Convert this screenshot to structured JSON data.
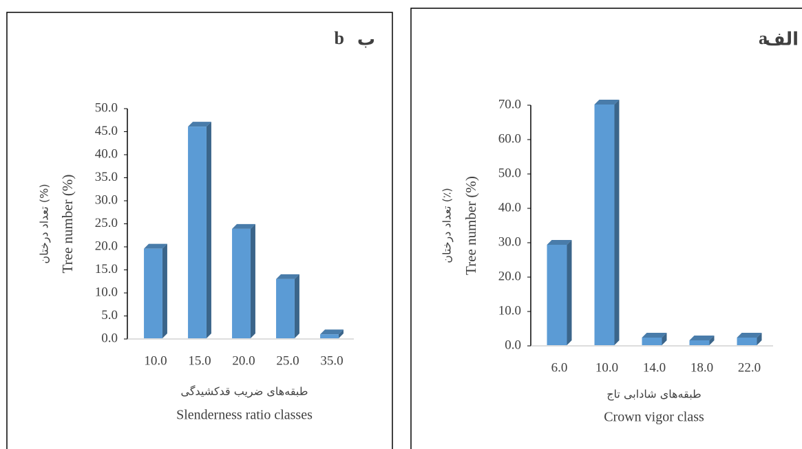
{
  "chart_data": [
    {
      "type": "bar3d",
      "panel_letter": "b",
      "panel_letter_fa": "ب",
      "y_label": "Tree number (%)",
      "y_label_fa": "تعداد درختان (%)",
      "x_label": "Slenderness ratio classes",
      "x_label_fa": "طبقه‌های ضریب قدکشیدگی",
      "categories": [
        "10.0",
        "15.0",
        "20.0",
        "25.0",
        "35.0"
      ],
      "values": [
        19.6,
        46.1,
        23.9,
        13.0,
        1.0
      ],
      "color": "#5b9bd5",
      "ylim": [
        0,
        50
      ],
      "yticks": [
        {
          "value": 0,
          "label": "0.0"
        },
        {
          "value": 5,
          "label": "5.0"
        },
        {
          "value": 10,
          "label": "10.0"
        },
        {
          "value": 15,
          "label": "15.0"
        },
        {
          "value": 20,
          "label": "20.0"
        },
        {
          "value": 25,
          "label": "25.0"
        },
        {
          "value": 30,
          "label": "30.0"
        },
        {
          "value": 35,
          "label": "35.0"
        },
        {
          "value": 40,
          "label": "40.0"
        },
        {
          "value": 45,
          "label": "45.0"
        },
        {
          "value": 50,
          "label": "50.0"
        }
      ]
    },
    {
      "type": "bar3d",
      "panel_letter": "a",
      "panel_letter_fa": "الف",
      "y_label": "Tree number (%)",
      "y_label_fa": "تعداد درختان (٪)",
      "x_label": "Crown vigor class",
      "x_label_fa": "طبقه‌های شادابی تاج",
      "categories": [
        "6.0",
        "10.0",
        "14.0",
        "18.0",
        "22.0"
      ],
      "values": [
        29.4,
        70.2,
        2.4,
        1.6,
        2.4
      ],
      "color": "#5b9bd5",
      "ylim": [
        0,
        70
      ],
      "yticks": [
        {
          "value": 0,
          "label": "0.0"
        },
        {
          "value": 10,
          "label": "10.0"
        },
        {
          "value": 20,
          "label": "20.0"
        },
        {
          "value": 30,
          "label": "30.0"
        },
        {
          "value": 40,
          "label": "40.0"
        },
        {
          "value": 50,
          "label": "50.0"
        },
        {
          "value": 60,
          "label": "60.0"
        },
        {
          "value": 70,
          "label": "70.0"
        }
      ]
    }
  ]
}
